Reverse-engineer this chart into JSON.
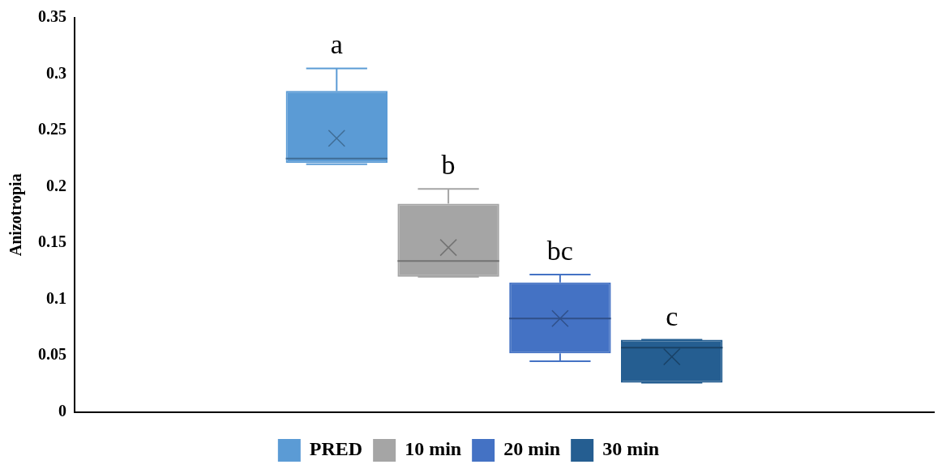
{
  "chart_data": {
    "type": "box",
    "ylabel": "Anizotropia",
    "categories": [
      null
    ],
    "ylim": [
      0,
      0.35
    ],
    "yticks": [
      0,
      0.05,
      0.1,
      0.15,
      0.2,
      0.25,
      0.3,
      0.35
    ],
    "grid": false,
    "legend": "bottom",
    "annotations": [
      "a",
      "b",
      "bc",
      "c"
    ],
    "series": [
      {
        "name": "PRED",
        "color": "#5b9bd5",
        "boxes": [
          {
            "low": 0.22,
            "q1": 0.221,
            "median": 0.225,
            "q3": 0.285,
            "high": 0.305,
            "mean": 0.243
          }
        ]
      },
      {
        "name": "10 min",
        "color": "#a5a5a5",
        "boxes": [
          {
            "low": 0.12,
            "q1": 0.12,
            "median": 0.134,
            "q3": 0.185,
            "high": 0.198,
            "mean": 0.146
          }
        ]
      },
      {
        "name": "20 min",
        "color": "#4472c4",
        "boxes": [
          {
            "low": 0.045,
            "q1": 0.052,
            "median": 0.083,
            "q3": 0.115,
            "high": 0.122,
            "mean": 0.083
          }
        ]
      },
      {
        "name": "30 min",
        "color": "#255e91",
        "boxes": [
          {
            "low": 0.026,
            "q1": 0.026,
            "median": 0.057,
            "q3": 0.064,
            "high": 0.064,
            "mean": 0.049
          }
        ]
      }
    ]
  }
}
